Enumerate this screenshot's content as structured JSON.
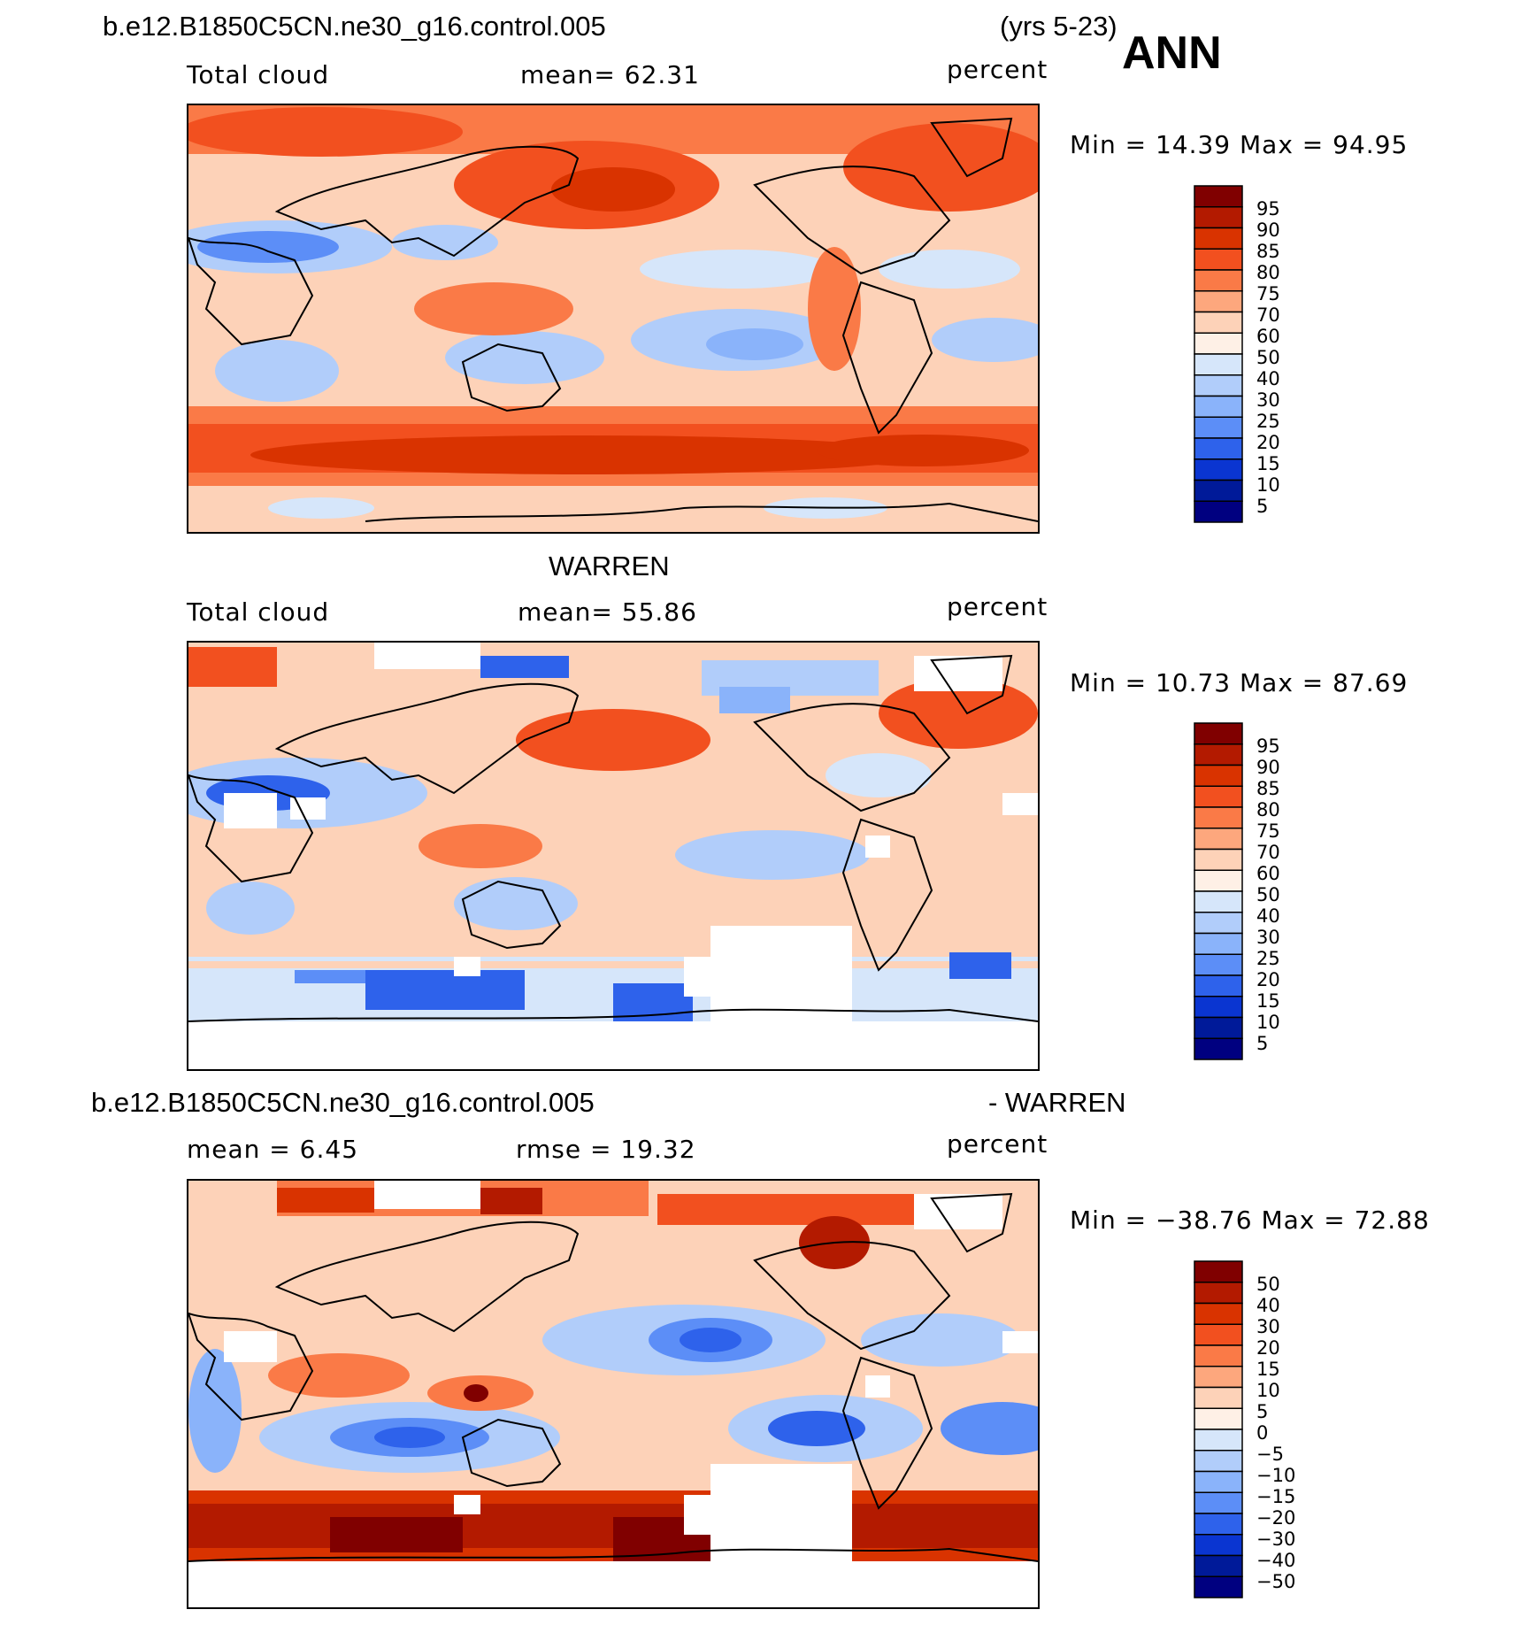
{
  "header": {
    "case_name": "b.e12.B1850C5CN.ne30_g16.control.005",
    "years": "(yrs 5-23)",
    "season": "ANN"
  },
  "panels": [
    {
      "title": "",
      "left_label": "Total cloud",
      "center_label": "mean=   62.31",
      "units": "percent",
      "minmax": "Min =   14.39 Max =   94.95",
      "colorbar_levels": [
        "95",
        "90",
        "85",
        "80",
        "75",
        "70",
        "60",
        "50",
        "40",
        "30",
        "25",
        "20",
        "15",
        "10",
        "5"
      ]
    },
    {
      "title": "WARREN",
      "left_label": "Total cloud",
      "center_label": "mean=   55.86",
      "units": "percent",
      "minmax": "Min =   10.73 Max =   87.69",
      "colorbar_levels": [
        "95",
        "90",
        "85",
        "80",
        "75",
        "70",
        "60",
        "50",
        "40",
        "30",
        "25",
        "20",
        "15",
        "10",
        "5"
      ]
    },
    {
      "title_left": "b.e12.B1850C5CN.ne30_g16.control.005",
      "title_right": "- WARREN",
      "left_label": "mean =    6.45",
      "center_label": "rmse =   19.32",
      "units": "percent",
      "minmax": "Min = −38.76 Max =   72.88",
      "colorbar_levels": [
        "50",
        "40",
        "30",
        "20",
        "15",
        "10",
        "5",
        "0",
        "−5",
        "−10",
        "−15",
        "−20",
        "−30",
        "−40",
        "−50"
      ]
    }
  ],
  "colors": {
    "scale": [
      "#800000",
      "#b31a00",
      "#d93300",
      "#f2501f",
      "#fa7a47",
      "#fda77d",
      "#fdd2b8",
      "#fef0e6",
      "#d6e6fa",
      "#b1cdfa",
      "#8ab3fa",
      "#5c8ef7",
      "#2e62eb",
      "#0a35d1",
      "#001a99",
      "#000080"
    ]
  },
  "chart_data": [
    {
      "type": "heatmap",
      "title": "Total cloud",
      "units": "percent",
      "mean": 62.31,
      "min": 14.39,
      "max": 94.95,
      "contour_levels": [
        5,
        10,
        15,
        20,
        25,
        30,
        40,
        50,
        60,
        70,
        75,
        80,
        85,
        90,
        95
      ]
    },
    {
      "type": "heatmap",
      "title": "Total cloud",
      "units": "percent",
      "mean": 55.86,
      "min": 10.73,
      "max": 87.69,
      "contour_levels": [
        5,
        10,
        15,
        20,
        25,
        30,
        40,
        50,
        60,
        70,
        75,
        80,
        85,
        90,
        95
      ]
    },
    {
      "type": "heatmap",
      "units": "percent",
      "mean": 6.45,
      "rmse": 19.32,
      "min": -38.76,
      "max": 72.88,
      "contour_levels": [
        -50,
        -40,
        -30,
        -20,
        -15,
        -10,
        -5,
        0,
        5,
        10,
        15,
        20,
        30,
        40,
        50
      ]
    }
  ]
}
